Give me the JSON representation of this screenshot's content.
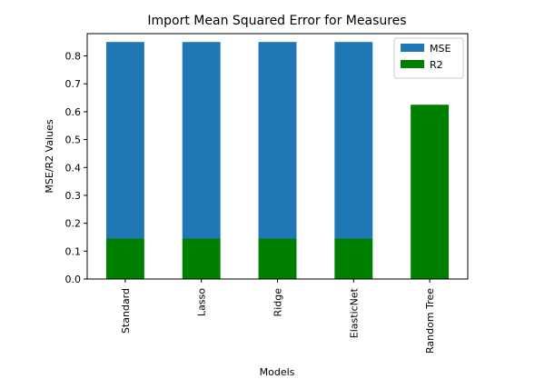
{
  "chart_data": {
    "type": "bar",
    "stacked": true,
    "title": "Import Mean Squared Error for Measures",
    "xlabel": "Models",
    "ylabel": "MSE/R2 Values",
    "categories": [
      "Standard",
      "Lasso",
      "Ridge",
      "ElasticNet",
      "Random Tree"
    ],
    "series": [
      {
        "name": "MSE",
        "color": "#1f77b4",
        "values": [
          0.705,
          0.705,
          0.705,
          0.705,
          0.0
        ]
      },
      {
        "name": "R2",
        "color": "#008000",
        "values": [
          0.145,
          0.145,
          0.145,
          0.145,
          0.625
        ]
      }
    ],
    "ylim": [
      0,
      0.88
    ],
    "yticks": [
      "0.0",
      "0.1",
      "0.2",
      "0.3",
      "0.4",
      "0.5",
      "0.6",
      "0.7",
      "0.8"
    ],
    "legend_position": "top-right",
    "grid": false
  }
}
